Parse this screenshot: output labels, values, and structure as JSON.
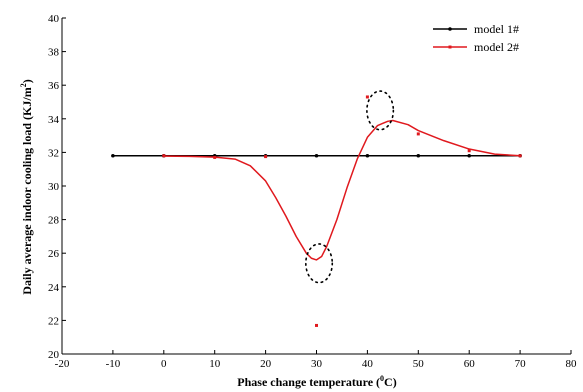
{
  "chart_data": {
    "type": "line",
    "xlabel": "Phase change temperature",
    "xlabel_unit_prefix": "(",
    "xlabel_unit_sup": "0",
    "xlabel_unit_suffix": "C)",
    "ylabel": "Daily average indoor cooling load",
    "ylabel_unit_prefix": "(KJ/m",
    "ylabel_unit_sup": "2",
    "ylabel_unit_suffix": ")",
    "xlim": [
      -20,
      80
    ],
    "ylim": [
      20,
      40
    ],
    "x_ticks": [
      -20,
      -10,
      0,
      10,
      20,
      30,
      40,
      50,
      60,
      70,
      80
    ],
    "y_ticks": [
      20,
      22,
      24,
      26,
      28,
      30,
      32,
      34,
      36,
      38,
      40
    ],
    "grid": false,
    "legend_position": "top-right",
    "series": [
      {
        "name": "model 1#",
        "color": "#000000",
        "points": [
          [
            -10,
            31.8
          ],
          [
            0,
            31.8
          ],
          [
            10,
            31.8
          ],
          [
            20,
            31.8
          ],
          [
            30,
            31.8
          ],
          [
            40,
            31.8
          ],
          [
            50,
            31.8
          ],
          [
            60,
            31.8
          ],
          [
            70,
            31.8
          ]
        ],
        "curve": [
          [
            -10,
            31.8
          ],
          [
            70,
            31.8
          ]
        ]
      },
      {
        "name": "model 2#",
        "color": "#e0191e",
        "points": [
          [
            0,
            31.8
          ],
          [
            10,
            31.7
          ],
          [
            20,
            31.75
          ],
          [
            30,
            21.7
          ],
          [
            40,
            35.3
          ],
          [
            50,
            33.1
          ],
          [
            60,
            32.1
          ],
          [
            70,
            31.8
          ]
        ],
        "curve": [
          [
            0,
            31.78
          ],
          [
            5,
            31.76
          ],
          [
            10,
            31.72
          ],
          [
            14,
            31.6
          ],
          [
            17,
            31.2
          ],
          [
            20,
            30.3
          ],
          [
            22,
            29.3
          ],
          [
            24,
            28.2
          ],
          [
            26,
            27.0
          ],
          [
            28,
            26.0
          ],
          [
            29,
            25.7
          ],
          [
            30,
            25.6
          ],
          [
            31,
            25.8
          ],
          [
            32,
            26.4
          ],
          [
            34,
            28.0
          ],
          [
            36,
            29.9
          ],
          [
            38,
            31.6
          ],
          [
            40,
            32.9
          ],
          [
            42,
            33.6
          ],
          [
            44,
            33.85
          ],
          [
            45,
            33.9
          ],
          [
            48,
            33.65
          ],
          [
            50,
            33.3
          ],
          [
            55,
            32.7
          ],
          [
            60,
            32.2
          ],
          [
            65,
            31.9
          ],
          [
            70,
            31.8
          ]
        ]
      }
    ],
    "annotations": [
      {
        "type": "dotted-circle",
        "cx": 30.5,
        "cy": 25.4,
        "rx": 2.6,
        "ry": 1.15
      },
      {
        "type": "dotted-circle",
        "cx": 42.5,
        "cy": 34.5,
        "rx": 2.6,
        "ry": 1.15
      }
    ]
  }
}
